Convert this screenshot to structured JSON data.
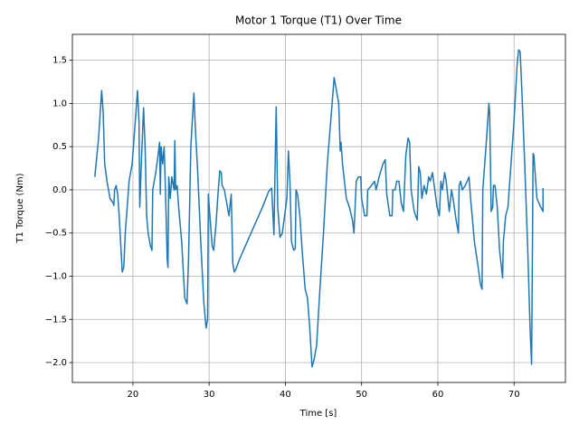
{
  "chart_data": {
    "type": "line",
    "title": "Motor 1 Torque (T1) Over Time",
    "xlabel": "Time [s]",
    "ylabel": "T1 Torque (Nm)",
    "color": "#1f77b4",
    "grid": true,
    "xlim": [
      12.06,
      76.74
    ],
    "ylim": [
      -2.23,
      1.8
    ],
    "xticks": [
      20,
      30,
      40,
      50,
      60,
      70
    ],
    "yticks": [
      {
        "value": -2.0,
        "label": "−2.0"
      },
      {
        "value": -1.5,
        "label": "−1.5"
      },
      {
        "value": -1.0,
        "label": "−1.0"
      },
      {
        "value": -0.5,
        "label": "−0.5"
      },
      {
        "value": 0.0,
        "label": "0.0"
      },
      {
        "value": 0.5,
        "label": "0.5"
      },
      {
        "value": 1.0,
        "label": "1.0"
      },
      {
        "value": 1.5,
        "label": "1.5"
      }
    ],
    "x": [
      15.0,
      15.5,
      15.9,
      16.1,
      16.3,
      16.6,
      17.0,
      17.4,
      17.5,
      17.6,
      17.8,
      18.0,
      18.2,
      18.6,
      18.8,
      19.0,
      19.5,
      19.9,
      20.4,
      20.6,
      20.8,
      20.9,
      21.1,
      21.4,
      21.6,
      21.8,
      22.0,
      22.3,
      22.5,
      22.6,
      23.0,
      23.3,
      23.5,
      23.6,
      23.7,
      23.9,
      24.1,
      24.3,
      24.5,
      24.6,
      24.7,
      24.9,
      25.1,
      25.4,
      25.5,
      25.6,
      25.8,
      26.0,
      26.4,
      26.8,
      27.1,
      27.3,
      27.6,
      28.0,
      28.2,
      28.5,
      28.9,
      29.3,
      29.6,
      29.8,
      29.9,
      30.1,
      30.4,
      30.6,
      30.9,
      31.2,
      31.4,
      31.6,
      31.7,
      32.0,
      32.3,
      32.6,
      32.9,
      33.1,
      33.3,
      33.5,
      34.0,
      35.0,
      36.0,
      37.0,
      37.8,
      38.2,
      38.5,
      38.7,
      38.8,
      39.0,
      39.3,
      39.6,
      39.9,
      40.2,
      40.4,
      40.6,
      40.8,
      41.1,
      41.3,
      41.4,
      41.6,
      41.9,
      42.2,
      42.6,
      42.9,
      43.2,
      43.5,
      43.8,
      44.1,
      44.5,
      45.0,
      45.5,
      46.0,
      46.4,
      46.8,
      47.0,
      47.2,
      47.3,
      47.5,
      48.0,
      48.4,
      48.8,
      49.0,
      49.3,
      49.6,
      49.9,
      50.0,
      50.4,
      50.7,
      50.8,
      51.3,
      51.7,
      51.9,
      52.3,
      52.8,
      53.1,
      53.3,
      53.7,
      54.0,
      54.1,
      54.4,
      54.6,
      54.9,
      55.2,
      55.5,
      55.8,
      56.1,
      56.3,
      56.5,
      56.9,
      57.3,
      57.5,
      57.7,
      57.9,
      58.2,
      58.5,
      58.8,
      59.0,
      59.3,
      59.6,
      59.9,
      60.2,
      60.4,
      60.6,
      60.9,
      61.1,
      61.5,
      61.8,
      62.0,
      62.4,
      62.7,
      62.8,
      63.0,
      63.2,
      63.6,
      64.1,
      64.3,
      64.8,
      65.3,
      65.6,
      65.8,
      65.9,
      66.4,
      66.7,
      66.8,
      67.0,
      67.2,
      67.3,
      67.5,
      67.8,
      68.1,
      68.5,
      68.6,
      68.9,
      69.2,
      69.6,
      70.0,
      70.4,
      70.6,
      70.8,
      71.0,
      71.4,
      71.8,
      72.1,
      72.3,
      72.5,
      72.6,
      73.0,
      73.5,
      73.8,
      73.8
    ],
    "values": [
      0.15,
      0.6,
      1.15,
      0.9,
      0.3,
      0.1,
      -0.1,
      -0.15,
      -0.18,
      0.0,
      0.05,
      -0.05,
      -0.3,
      -0.95,
      -0.9,
      -0.5,
      0.1,
      0.3,
      0.9,
      1.15,
      0.8,
      -0.2,
      0.3,
      0.95,
      0.5,
      -0.3,
      -0.5,
      -0.65,
      -0.7,
      0.0,
      0.2,
      0.4,
      0.55,
      -0.05,
      0.5,
      0.3,
      0.5,
      -0.1,
      -0.8,
      -0.9,
      0.15,
      -0.1,
      0.15,
      0.0,
      0.57,
      0.0,
      0.05,
      -0.2,
      -0.6,
      -1.25,
      -1.32,
      -0.8,
      0.5,
      1.12,
      0.7,
      0.2,
      -0.6,
      -1.3,
      -1.6,
      -1.5,
      -0.05,
      -0.3,
      -0.65,
      -0.7,
      -0.4,
      0.0,
      0.22,
      0.2,
      0.05,
      0.0,
      -0.15,
      -0.3,
      -0.05,
      -0.85,
      -0.95,
      -0.92,
      -0.8,
      -0.6,
      -0.4,
      -0.2,
      -0.02,
      0.02,
      -0.52,
      0.5,
      0.96,
      -0.2,
      -0.55,
      -0.5,
      -0.3,
      -0.1,
      0.45,
      0.1,
      -0.6,
      -0.7,
      -0.68,
      0.0,
      -0.05,
      -0.3,
      -0.7,
      -1.15,
      -1.25,
      -1.6,
      -2.05,
      -1.95,
      -1.8,
      -1.2,
      -0.5,
      0.3,
      0.85,
      1.3,
      1.1,
      1.0,
      0.45,
      0.55,
      0.3,
      -0.1,
      -0.2,
      -0.35,
      -0.5,
      0.1,
      0.15,
      0.15,
      -0.1,
      -0.3,
      -0.3,
      0.0,
      0.05,
      0.1,
      0.0,
      0.15,
      0.3,
      0.35,
      -0.05,
      -0.3,
      -0.3,
      0.0,
      0.0,
      0.1,
      0.1,
      -0.15,
      -0.25,
      0.4,
      0.6,
      0.55,
      0.0,
      -0.25,
      -0.35,
      0.27,
      0.2,
      -0.1,
      0.05,
      -0.05,
      0.15,
      0.1,
      0.2,
      0.0,
      -0.2,
      -0.3,
      0.1,
      0.0,
      0.2,
      0.1,
      -0.25,
      0.0,
      -0.1,
      -0.35,
      -0.5,
      0.05,
      0.1,
      0.0,
      0.05,
      0.15,
      -0.1,
      -0.6,
      -0.9,
      -1.1,
      -1.15,
      0.0,
      0.6,
      1.0,
      0.9,
      -0.25,
      -0.2,
      0.05,
      0.05,
      -0.2,
      -0.7,
      -1.02,
      -0.6,
      -0.3,
      -0.2,
      0.3,
      0.8,
      1.45,
      1.62,
      1.6,
      1.2,
      0.3,
      -0.7,
      -1.6,
      -2.02,
      0.42,
      0.4,
      -0.1,
      -0.2,
      -0.25,
      0.02
    ]
  }
}
